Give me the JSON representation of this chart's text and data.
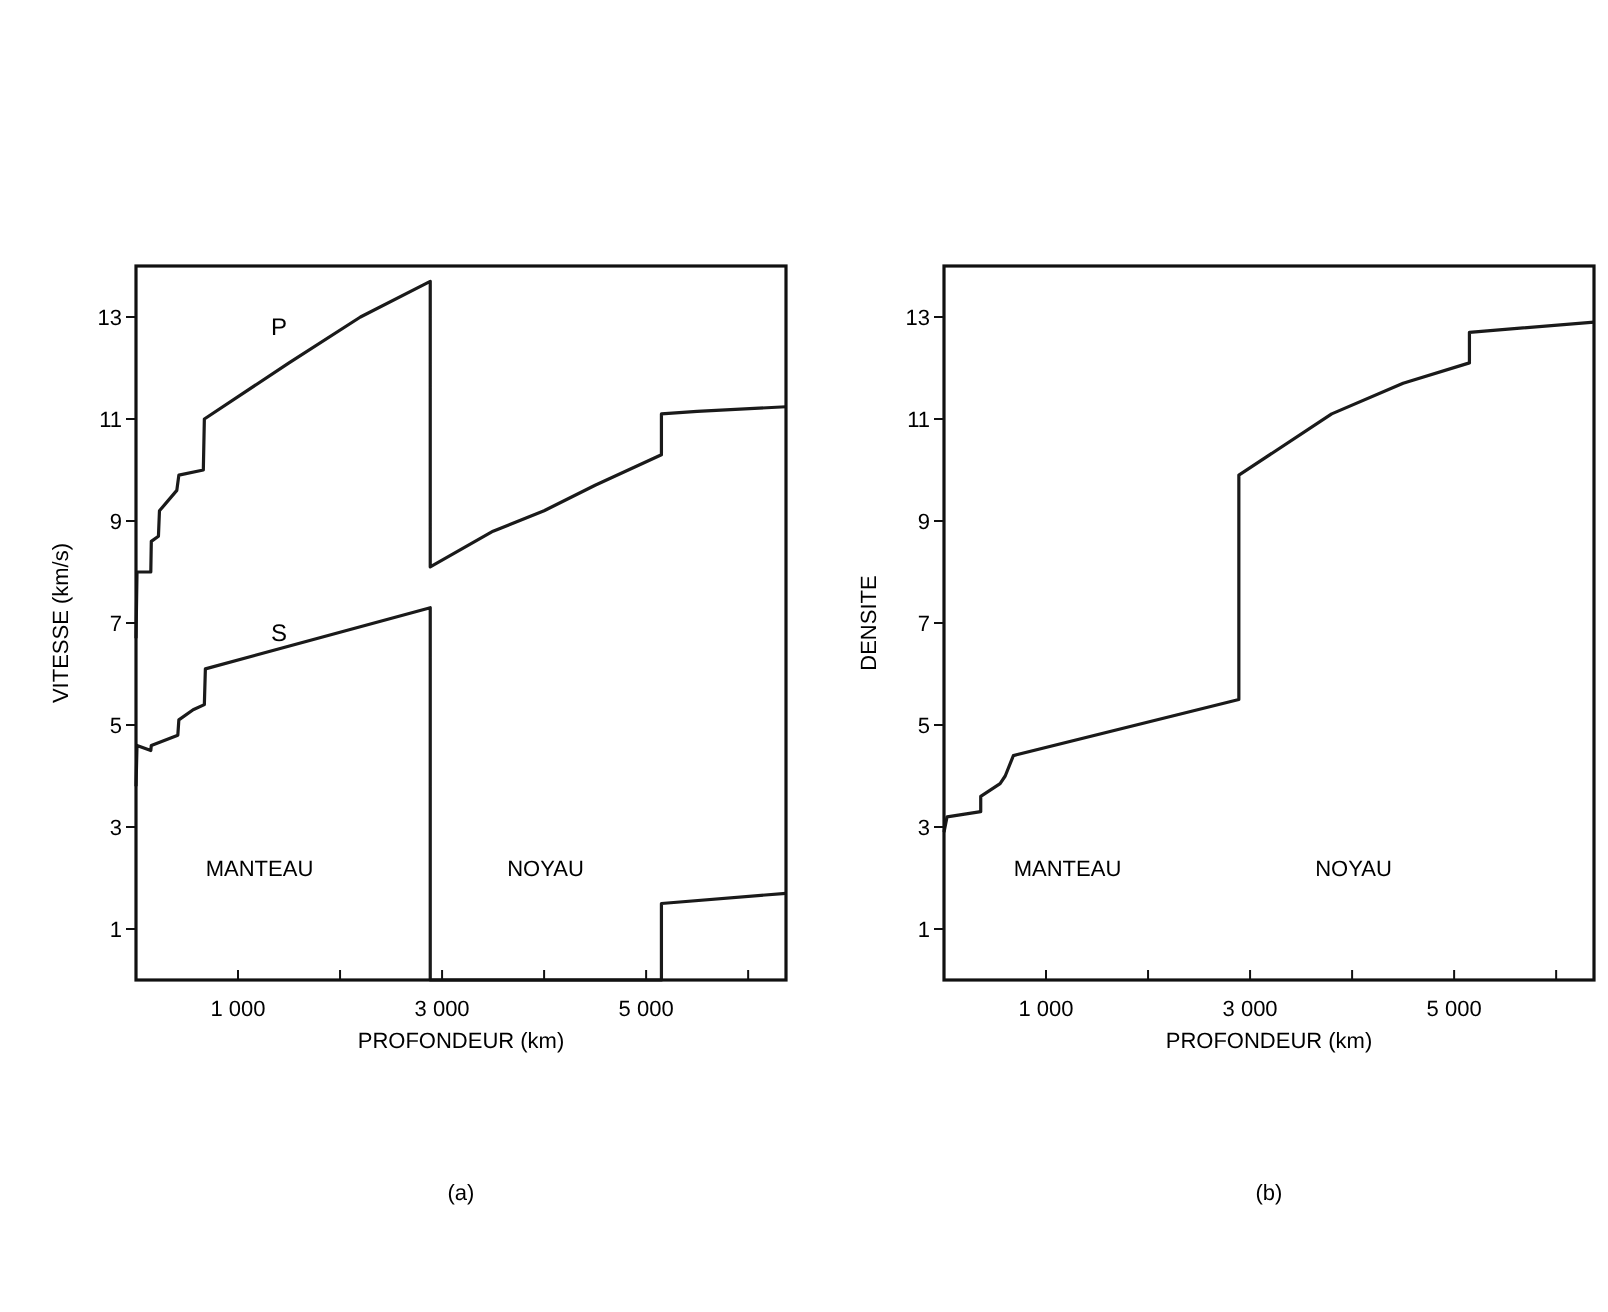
{
  "chart_data": [
    {
      "type": "line",
      "xlabel": "PROFONDEUR (km)",
      "ylabel": "VITESSE (km/s)",
      "xlim": [
        0,
        6371
      ],
      "ylim": [
        0,
        14
      ],
      "xticks": [
        {
          "value": 1000,
          "label": "1 000"
        },
        {
          "value": 2000,
          "label": null
        },
        {
          "value": 3000,
          "label": "3 000"
        },
        {
          "value": 4000,
          "label": null
        },
        {
          "value": 5000,
          "label": "5 000"
        },
        {
          "value": 6000,
          "label": null
        }
      ],
      "yticks": [
        1,
        3,
        5,
        7,
        9,
        11,
        13
      ],
      "series": [
        {
          "name": "P",
          "color": "#1a1a1a",
          "x": [
            0,
            10,
            145,
            150,
            220,
            230,
            400,
            420,
            660,
            670,
            1500,
            2200,
            2884,
            2884,
            3500,
            4000,
            4500,
            5150,
            5150,
            5500,
            6371
          ],
          "values": [
            6.7,
            8.0,
            8.0,
            8.6,
            8.7,
            9.2,
            9.6,
            9.9,
            10.0,
            11.0,
            12.1,
            13.0,
            13.7,
            8.1,
            8.8,
            9.2,
            9.7,
            10.3,
            11.1,
            11.15,
            11.24
          ]
        },
        {
          "name": "S",
          "color": "#1a1a1a",
          "x": [
            0,
            10,
            145,
            150,
            410,
            420,
            560,
            670,
            680,
            2884,
            2884,
            5150,
            5150,
            6371
          ],
          "values": [
            3.8,
            4.6,
            4.5,
            4.6,
            4.8,
            5.1,
            5.3,
            5.4,
            6.1,
            7.3,
            0,
            0,
            1.5,
            1.7
          ]
        }
      ],
      "subtitle": "(a)",
      "annotations": [
        "MANTEAU",
        "NOYAU"
      ]
    },
    {
      "type": "line",
      "xlabel": "PROFONDEUR (km)",
      "ylabel": "DENSITE",
      "xlim": [
        0,
        6371
      ],
      "ylim": [
        0,
        14
      ],
      "xticks": [
        {
          "value": 1000,
          "label": "1 000"
        },
        {
          "value": 2000,
          "label": null
        },
        {
          "value": 3000,
          "label": "3 000"
        },
        {
          "value": 4000,
          "label": null
        },
        {
          "value": 5000,
          "label": "5 000"
        },
        {
          "value": 6000,
          "label": null
        }
      ],
      "yticks": [
        1,
        3,
        5,
        7,
        9,
        11,
        13
      ],
      "series": [
        {
          "color": "#1a1a1a",
          "x": [
            0,
            30,
            360,
            360,
            550,
            600,
            680,
            2890,
            2890,
            3800,
            4500,
            5150,
            5150,
            6371
          ],
          "values": [
            2.9,
            3.2,
            3.3,
            3.6,
            3.85,
            4.0,
            4.4,
            5.5,
            9.9,
            11.1,
            11.7,
            12.1,
            12.7,
            12.9
          ]
        }
      ],
      "subtitle": "(b)",
      "annotations": [
        "MANTEAU",
        "NOYAU"
      ]
    }
  ]
}
